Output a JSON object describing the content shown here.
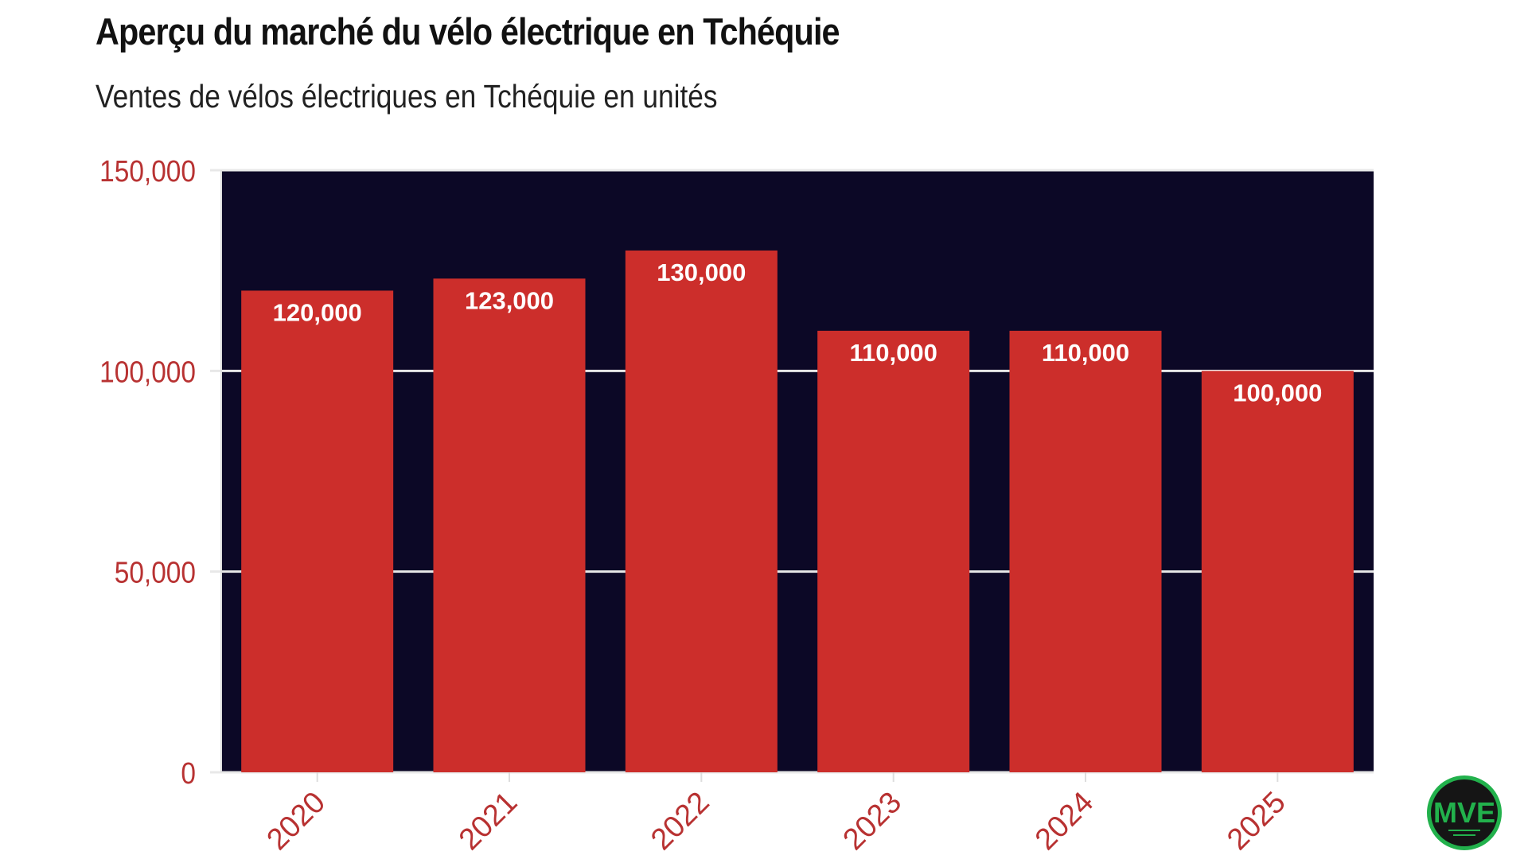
{
  "chart_data": {
    "type": "bar",
    "title": "Aperçu du marché du vélo électrique en Tchéquie",
    "subtitle": "Ventes de vélos électriques en Tchéquie en unités",
    "categories": [
      "2020",
      "2021",
      "2022",
      "2023",
      "2024",
      "2025"
    ],
    "values": [
      120000,
      123000,
      130000,
      110000,
      110000,
      100000
    ],
    "data_labels": [
      "120,000",
      "123,000",
      "130,000",
      "110,000",
      "110,000",
      "100,000"
    ],
    "xlabel": "",
    "ylabel": "",
    "ylim": [
      0,
      150000
    ],
    "yticks": [
      0,
      50000,
      100000,
      150000
    ],
    "ytick_labels": [
      "0",
      "50,000",
      "100,000",
      "150,000"
    ],
    "grid": true,
    "colors": {
      "bar": "#cc2e2b",
      "plot_background": "#0c0826",
      "tick_label": "#b83232",
      "grid": "#e8e8e8",
      "data_label": "#ffffff"
    }
  },
  "logo": {
    "text": "MVE",
    "color": "#22b14c"
  }
}
